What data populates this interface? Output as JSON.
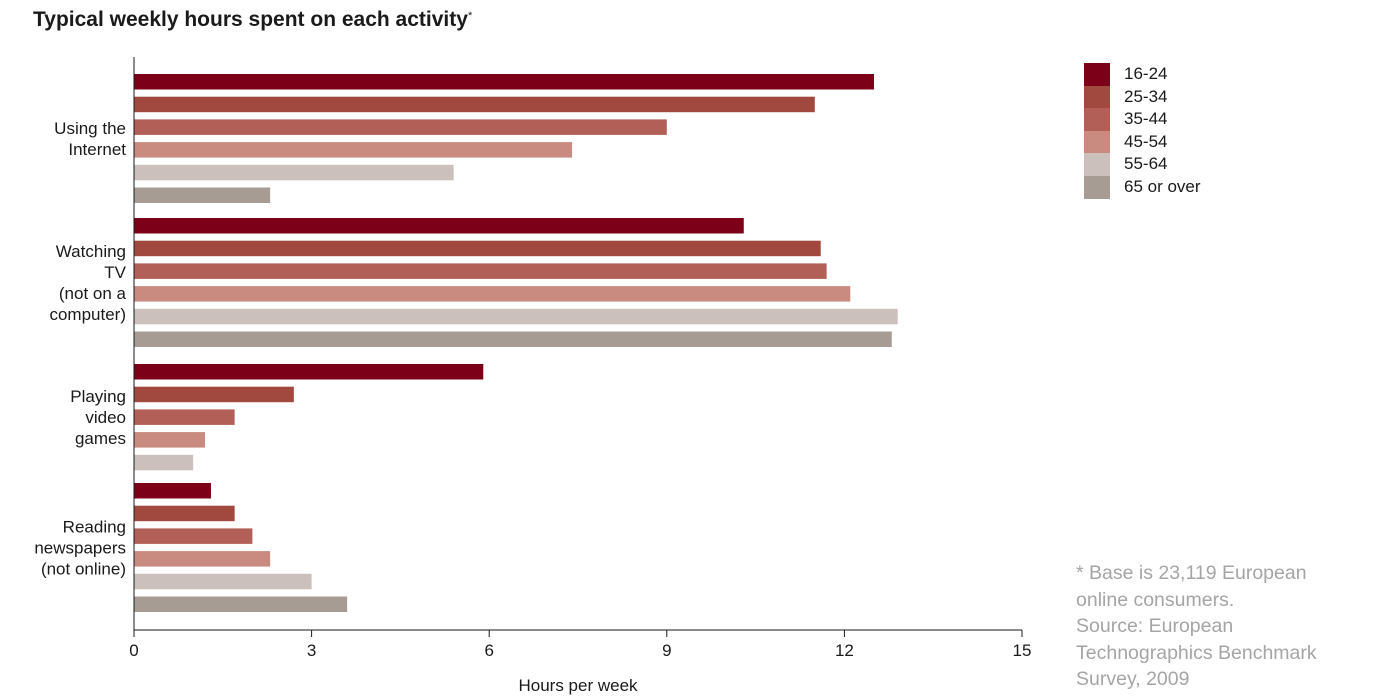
{
  "title": {
    "text": "Typical weekly hours spent on each activity",
    "superscript": "*"
  },
  "footnote": {
    "lines": [
      "* Base is 23,119 European",
      "online consumers.",
      "Source: European",
      "Technographics Benchmark",
      "Survey, 2009"
    ]
  },
  "chart_data": {
    "type": "bar",
    "orientation": "horizontal",
    "title": "Typical weekly hours spent on each activity*",
    "xlabel": "Hours per week",
    "ylabel": "",
    "xlim": [
      0,
      15
    ],
    "xticks": [
      0,
      3,
      6,
      9,
      12,
      15
    ],
    "grid": false,
    "legend_position": "top-right",
    "categories": [
      [
        "Using the",
        "Internet"
      ],
      [
        "Watching",
        "TV",
        "(not on a",
        "computer)"
      ],
      [
        "Playing",
        "video",
        "games"
      ],
      [
        "Reading",
        "newspapers",
        "(not online)"
      ]
    ],
    "series": [
      {
        "name": "16-24",
        "color": "#7d0019",
        "values": [
          12.5,
          10.3,
          5.9,
          1.3
        ]
      },
      {
        "name": "25-34",
        "color": "#a1493f",
        "values": [
          11.5,
          11.6,
          2.7,
          1.7
        ]
      },
      {
        "name": "35-44",
        "color": "#b25f57",
        "values": [
          9.0,
          11.7,
          1.7,
          2.0
        ]
      },
      {
        "name": "45-54",
        "color": "#c98b80",
        "values": [
          7.4,
          12.1,
          1.2,
          2.3
        ]
      },
      {
        "name": "55-64",
        "color": "#cbc0bb",
        "values": [
          5.4,
          12.9,
          1.0,
          3.0
        ]
      },
      {
        "name": "65 or over",
        "color": "#a79c93",
        "values": [
          2.3,
          12.8,
          null,
          3.6
        ]
      }
    ]
  }
}
